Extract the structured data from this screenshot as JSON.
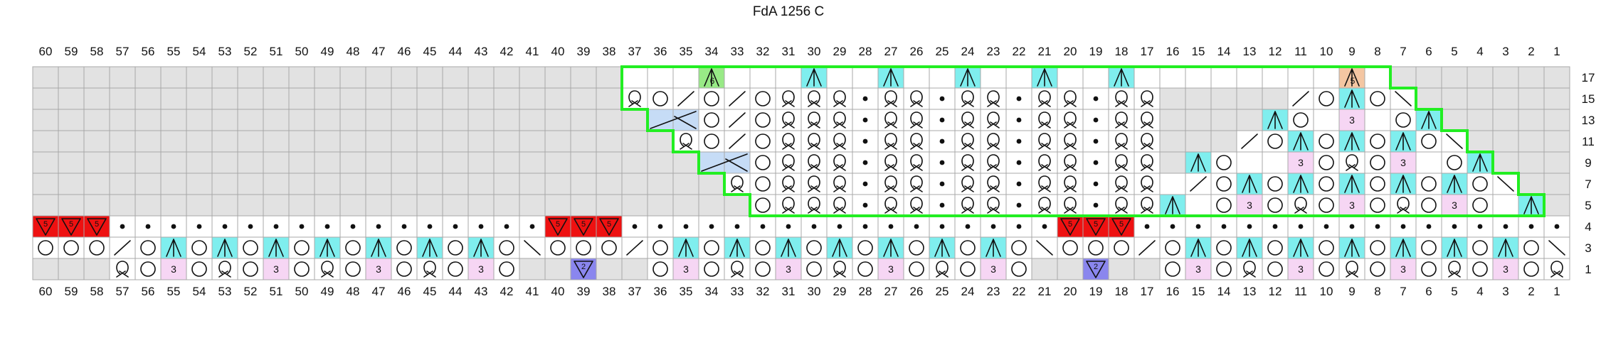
{
  "title": "FdA 1256 C",
  "columns": [
    60,
    59,
    58,
    57,
    56,
    55,
    54,
    53,
    52,
    51,
    50,
    49,
    48,
    47,
    46,
    45,
    44,
    43,
    42,
    41,
    40,
    39,
    38,
    37,
    36,
    35,
    34,
    33,
    32,
    31,
    30,
    29,
    28,
    27,
    26,
    25,
    24,
    23,
    22,
    21,
    20,
    19,
    18,
    17,
    16,
    15,
    14,
    13,
    12,
    11,
    10,
    9,
    8,
    7,
    6,
    5,
    4,
    3,
    2,
    1
  ],
  "rows": [
    "17",
    "15",
    "13",
    "11",
    "9",
    "7",
    "5",
    "4",
    "3",
    "1"
  ],
  "legend_colors": {
    "blank": "#ffffff",
    "no_stitch": "#e2e2e2",
    "red": "#ee1111",
    "cyan": "#7feeee",
    "pink": "#f6d6f4",
    "purple": "#8a86ee",
    "lightblue": "#c6dcf6",
    "green": "#98ea86",
    "orange": "#f4c6a2",
    "outline": "#22ee22",
    "gridline": "#a8a8a8"
  },
  "rows_data": {
    "17": {
      "type": "s17"
    },
    "15": {
      "type": "s15"
    },
    "13": {
      "type": "s13"
    },
    "11": {
      "type": "s11"
    },
    "9": {
      "type": "s9"
    },
    "7": {
      "type": "s7"
    },
    "5": {
      "type": "s5"
    },
    "4": {
      "type": "s4"
    },
    "3": {
      "type": "s3"
    },
    "1": {
      "type": "s1"
    }
  }
}
